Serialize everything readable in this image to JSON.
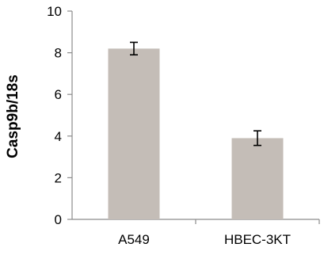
{
  "chart_data": {
    "type": "bar",
    "title": "",
    "xlabel": "",
    "ylabel": "Casp9b/18s",
    "ylim": [
      0,
      10
    ],
    "yticks": [
      "0",
      "2",
      "4",
      "6",
      "8",
      "10"
    ],
    "categories": [
      "A549",
      "HBEC-3KT"
    ],
    "values": [
      8.2,
      3.9
    ],
    "errors": [
      0.3,
      0.35
    ],
    "bar_color": "#c4bdb7",
    "grid": false,
    "legend": "none"
  }
}
